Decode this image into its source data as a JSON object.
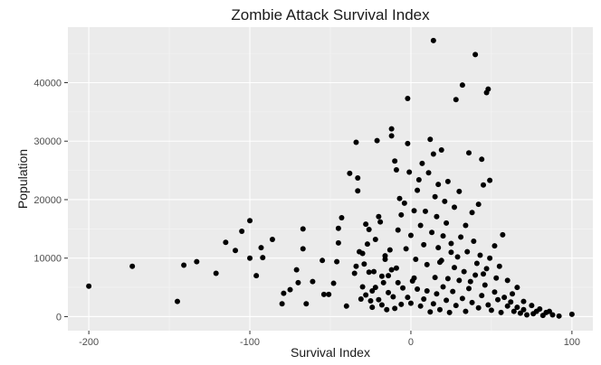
{
  "chart_data": {
    "type": "scatter",
    "title": "Zombie Attack Survival Index",
    "xlabel": "Survival Index",
    "ylabel": "Population",
    "xlim": [
      -213,
      113
    ],
    "ylim": [
      -2400,
      49500
    ],
    "x_ticks": [
      -200,
      -100,
      0,
      100
    ],
    "x_tick_labels": [
      "-200",
      "-100",
      "0",
      "100"
    ],
    "y_ticks": [
      0,
      10000,
      20000,
      30000,
      40000
    ],
    "y_tick_labels": [
      "0",
      "10000",
      "20000",
      "30000",
      "40000"
    ],
    "grid": true,
    "legend": "none",
    "colors": {
      "panel": "#ebebeb",
      "grid_major": "#ffffff",
      "grid_minor": "#f5f5f5",
      "point": "#000000"
    },
    "points": [
      [
        -200,
        5200
      ],
      [
        -173,
        8600
      ],
      [
        -145,
        2600
      ],
      [
        -141,
        8800
      ],
      [
        -133,
        9400
      ],
      [
        -121,
        7400
      ],
      [
        -115,
        12700
      ],
      [
        -109,
        11300
      ],
      [
        -105,
        14600
      ],
      [
        -100,
        16400
      ],
      [
        -100,
        10000
      ],
      [
        -96,
        7000
      ],
      [
        -93,
        11800
      ],
      [
        -92,
        10100
      ],
      [
        -86,
        13200
      ],
      [
        -80,
        2200
      ],
      [
        -79,
        4000
      ],
      [
        -75,
        4600
      ],
      [
        -71,
        8000
      ],
      [
        -70,
        5800
      ],
      [
        -67,
        11600
      ],
      [
        -67,
        15000
      ],
      [
        -65,
        2200
      ],
      [
        -61,
        6000
      ],
      [
        -55,
        9600
      ],
      [
        -54,
        3800
      ],
      [
        -51,
        3800
      ],
      [
        -48,
        5700
      ],
      [
        -46,
        9400
      ],
      [
        -45,
        12600
      ],
      [
        -45,
        15100
      ],
      [
        -43,
        16900
      ],
      [
        -40,
        1800
      ],
      [
        -38,
        24500
      ],
      [
        -35,
        7400
      ],
      [
        -34,
        8600
      ],
      [
        -34,
        29800
      ],
      [
        -33,
        23700
      ],
      [
        -33,
        21500
      ],
      [
        -32,
        11100
      ],
      [
        -31,
        3000
      ],
      [
        -30,
        5100
      ],
      [
        -29,
        9000
      ],
      [
        -28,
        15800
      ],
      [
        -27,
        12400
      ],
      [
        -26,
        14900
      ],
      [
        -25,
        2700
      ],
      [
        -24,
        4400
      ],
      [
        -23,
        7700
      ],
      [
        -22,
        13200
      ],
      [
        -21,
        30100
      ],
      [
        -20,
        17100
      ],
      [
        -19,
        16200
      ],
      [
        -18,
        2000
      ],
      [
        -17,
        5800
      ],
      [
        -16,
        10400
      ],
      [
        -15,
        1200
      ],
      [
        -14,
        7000
      ],
      [
        -13,
        11400
      ],
      [
        -12,
        32100
      ],
      [
        -12,
        30900
      ],
      [
        -11,
        3400
      ],
      [
        -10,
        26600
      ],
      [
        -9,
        25100
      ],
      [
        -9,
        8300
      ],
      [
        -8,
        14800
      ],
      [
        -7,
        20200
      ],
      [
        -6,
        17400
      ],
      [
        -5,
        4900
      ],
      [
        -4,
        19400
      ],
      [
        -3,
        11600
      ],
      [
        -2,
        29600
      ],
      [
        -2,
        37300
      ],
      [
        -1,
        24700
      ],
      [
        0,
        2300
      ],
      [
        0,
        13900
      ],
      [
        1,
        6100
      ],
      [
        2,
        18100
      ],
      [
        3,
        9800
      ],
      [
        4,
        21600
      ],
      [
        5,
        23400
      ],
      [
        6,
        15600
      ],
      [
        7,
        26200
      ],
      [
        8,
        12300
      ],
      [
        9,
        18000
      ],
      [
        10,
        8900
      ],
      [
        11,
        24600
      ],
      [
        12,
        30300
      ],
      [
        13,
        14400
      ],
      [
        14,
        27800
      ],
      [
        14,
        47200
      ],
      [
        15,
        20500
      ],
      [
        16,
        17100
      ],
      [
        17,
        22600
      ],
      [
        18,
        9300
      ],
      [
        19,
        28500
      ],
      [
        20,
        13800
      ],
      [
        21,
        19700
      ],
      [
        22,
        16000
      ],
      [
        23,
        23100
      ],
      [
        25,
        11000
      ],
      [
        27,
        18700
      ],
      [
        28,
        37100
      ],
      [
        30,
        21400
      ],
      [
        32,
        39600
      ],
      [
        34,
        15600
      ],
      [
        36,
        28000
      ],
      [
        38,
        17800
      ],
      [
        40,
        44800
      ],
      [
        42,
        19200
      ],
      [
        44,
        26900
      ],
      [
        45,
        22500
      ],
      [
        47,
        38300
      ],
      [
        48,
        38900
      ],
      [
        49,
        23300
      ],
      [
        52,
        12100
      ],
      [
        55,
        8600
      ],
      [
        57,
        14000
      ],
      [
        60,
        6200
      ],
      [
        63,
        3900
      ],
      [
        66,
        5000
      ],
      [
        70,
        2600
      ],
      [
        75,
        1900
      ],
      [
        80,
        1300
      ],
      [
        86,
        900
      ],
      [
        100,
        400
      ]
    ],
    "cluster": {
      "note": "dense cluster of low-population points",
      "points": [
        [
          12,
          800
        ],
        [
          14,
          2200
        ],
        [
          16,
          3900
        ],
        [
          18,
          1200
        ],
        [
          20,
          5100
        ],
        [
          22,
          2800
        ],
        [
          24,
          700
        ],
        [
          26,
          4300
        ],
        [
          28,
          1900
        ],
        [
          30,
          6200
        ],
        [
          32,
          3100
        ],
        [
          34,
          900
        ],
        [
          36,
          4800
        ],
        [
          38,
          2400
        ],
        [
          40,
          7100
        ],
        [
          42,
          1500
        ],
        [
          44,
          3600
        ],
        [
          46,
          5400
        ],
        [
          48,
          2000
        ],
        [
          50,
          1100
        ],
        [
          52,
          4200
        ],
        [
          54,
          2900
        ],
        [
          56,
          700
        ],
        [
          58,
          3300
        ],
        [
          60,
          1800
        ],
        [
          62,
          2500
        ],
        [
          64,
          900
        ],
        [
          66,
          1600
        ],
        [
          68,
          600
        ],
        [
          70,
          1200
        ],
        [
          19,
          9600
        ],
        [
          27,
          8400
        ],
        [
          33,
          7700
        ],
        [
          41,
          9100
        ],
        [
          47,
          8200
        ],
        [
          23,
          6500
        ],
        [
          37,
          6000
        ],
        [
          45,
          7300
        ],
        [
          15,
          6700
        ],
        [
          29,
          10200
        ],
        [
          35,
          11100
        ],
        [
          43,
          10500
        ],
        [
          17,
          11800
        ],
        [
          25,
          12500
        ],
        [
          39,
          12900
        ],
        [
          31,
          13600
        ],
        [
          49,
          10000
        ],
        [
          53,
          6600
        ],
        [
          10,
          4400
        ],
        [
          8,
          3000
        ],
        [
          6,
          1800
        ],
        [
          4,
          4700
        ],
        [
          2,
          6600
        ],
        [
          -2,
          3300
        ],
        [
          -6,
          2100
        ],
        [
          -8,
          5800
        ],
        [
          -10,
          1400
        ],
        [
          -12,
          8000
        ],
        [
          -14,
          4100
        ],
        [
          -16,
          9800
        ],
        [
          -18,
          6900
        ],
        [
          -20,
          2900
        ],
        [
          -22,
          5000
        ],
        [
          -24,
          1600
        ],
        [
          -26,
          7600
        ],
        [
          -28,
          3700
        ],
        [
          -30,
          10800
        ],
        [
          72,
          300
        ],
        [
          76,
          500
        ],
        [
          82,
          200
        ],
        [
          88,
          300
        ],
        [
          92,
          100
        ],
        [
          78,
          900
        ],
        [
          84,
          700
        ]
      ]
    }
  }
}
